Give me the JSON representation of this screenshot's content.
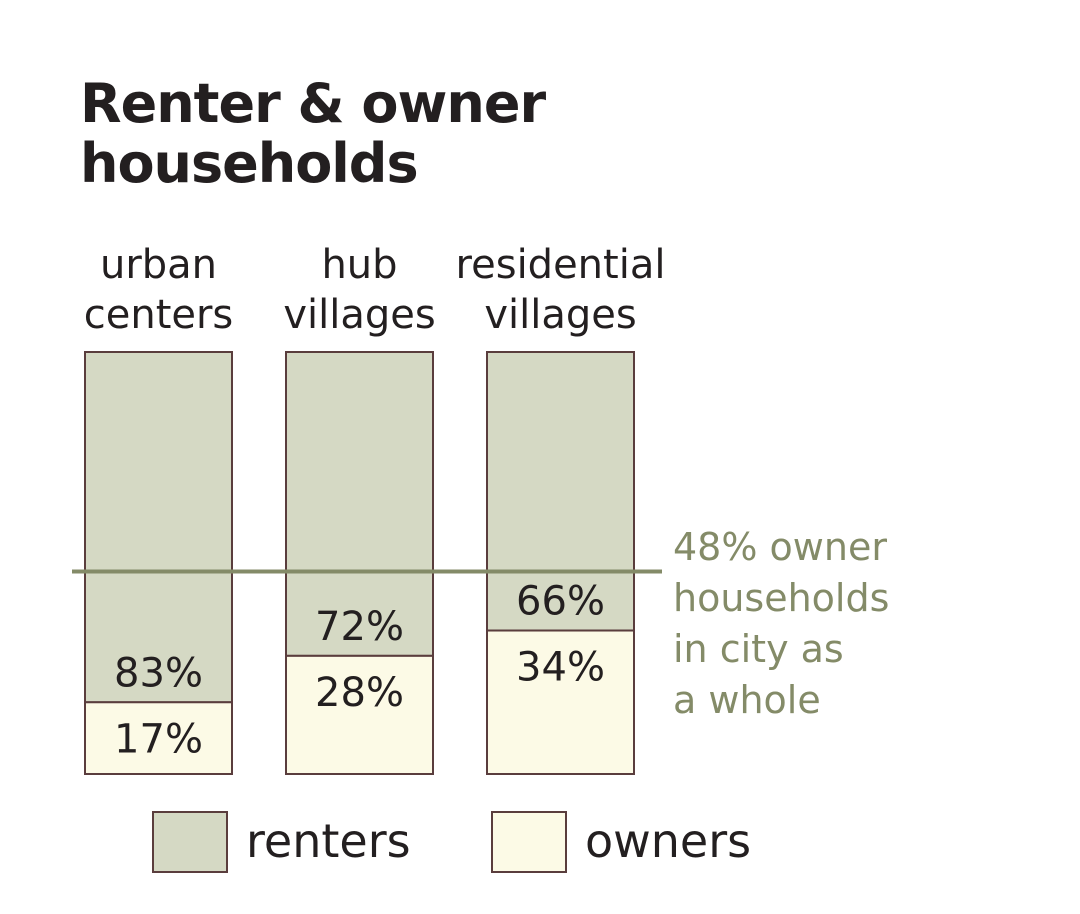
{
  "title_lines": [
    "Renter & owner",
    "households"
  ],
  "colors": {
    "renters": "#d5d9c4",
    "owners": "#fcfae6",
    "outline": "#5a3d3d",
    "reference": "#848b68",
    "text": "#231f20"
  },
  "reference_line": {
    "value": 48,
    "label_lines": [
      "48% owner",
      "households",
      "in city as",
      "a whole"
    ]
  },
  "legend": [
    {
      "key": "renters",
      "label": "renters"
    },
    {
      "key": "owners",
      "label": "owners"
    }
  ],
  "chart_data": {
    "type": "bar",
    "stacked": true,
    "orientation": "vertical",
    "unit": "percent",
    "title": "Renter & owner households",
    "categories": [
      {
        "label_lines": [
          "urban",
          "centers"
        ]
      },
      {
        "label_lines": [
          "hub",
          "villages"
        ]
      },
      {
        "label_lines": [
          "residential",
          "villages"
        ]
      }
    ],
    "series": [
      {
        "name": "owners",
        "values": [
          17,
          28,
          34
        ],
        "labels": [
          "17%",
          "28%",
          "34%"
        ]
      },
      {
        "name": "renters",
        "values": [
          83,
          72,
          66
        ],
        "labels": [
          "83%",
          "72%",
          "66%"
        ]
      }
    ],
    "ylim": [
      0,
      100
    ],
    "legend_position": "bottom",
    "grid": false
  }
}
